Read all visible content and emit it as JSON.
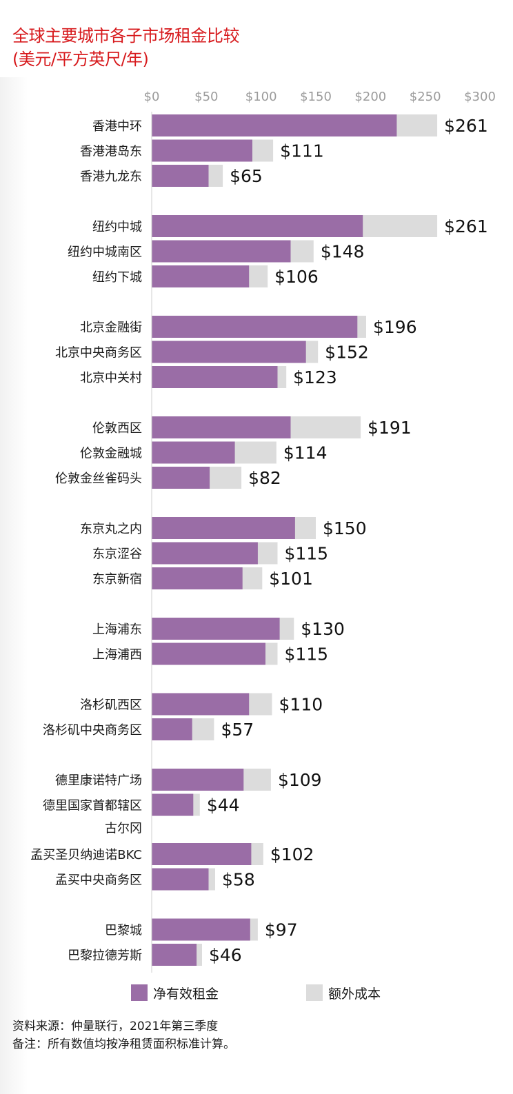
{
  "header": {
    "title": "全球主要城市各子市场租金比较",
    "subtitle": "(美元/平方英尺/年)"
  },
  "legend": {
    "net_label": "净有效租金",
    "extra_label": "额外成本"
  },
  "footer": {
    "source": "资料来源：仲量联行，2021年第三季度",
    "note": "备注：所有数值均按净租赁面积标准计算。"
  },
  "colors": {
    "net": "#9a6da6",
    "extra": "#dcdcdc",
    "title": "#d7191c",
    "tick": "#9b9b9b"
  },
  "chart_data": {
    "type": "bar",
    "orientation": "horizontal",
    "stacked": true,
    "xlim": [
      0,
      300
    ],
    "ticks": [
      0,
      50,
      100,
      150,
      200,
      250,
      300
    ],
    "tick_labels": [
      "$0",
      "$50",
      "$100",
      "$150",
      "$200",
      "$250",
      "$300"
    ],
    "groups": [
      {
        "items": [
          {
            "label": "香港中环",
            "net": 224,
            "extra": 37,
            "total_label": "$261"
          },
          {
            "label": "香港港岛东",
            "net": 92,
            "extra": 19,
            "total_label": "$111"
          },
          {
            "label": "香港九龙东",
            "net": 52,
            "extra": 13,
            "total_label": "$65"
          }
        ]
      },
      {
        "items": [
          {
            "label": "纽约中城",
            "net": 193,
            "extra": 68,
            "total_label": "$261"
          },
          {
            "label": "纽约中城南区",
            "net": 127,
            "extra": 21,
            "total_label": "$148"
          },
          {
            "label": "纽约下城",
            "net": 89,
            "extra": 17,
            "total_label": "$106"
          }
        ]
      },
      {
        "items": [
          {
            "label": "北京金融街",
            "net": 188,
            "extra": 8,
            "total_label": "$196"
          },
          {
            "label": "北京中央商务区",
            "net": 141,
            "extra": 11,
            "total_label": "$152"
          },
          {
            "label": "北京中关村",
            "net": 115,
            "extra": 8,
            "total_label": "$123"
          }
        ]
      },
      {
        "items": [
          {
            "label": "伦敦西区",
            "net": 127,
            "extra": 64,
            "total_label": "$191"
          },
          {
            "label": "伦敦金融城",
            "net": 76,
            "extra": 38,
            "total_label": "$114"
          },
          {
            "label": "伦敦金丝雀码头",
            "net": 53,
            "extra": 29,
            "total_label": "$82"
          }
        ]
      },
      {
        "items": [
          {
            "label": "东京丸之内",
            "net": 131,
            "extra": 19,
            "total_label": "$150"
          },
          {
            "label": "东京涩谷",
            "net": 97,
            "extra": 18,
            "total_label": "$115"
          },
          {
            "label": "东京新宿",
            "net": 83,
            "extra": 18,
            "total_label": "$101"
          }
        ]
      },
      {
        "items": [
          {
            "label": "上海浦东",
            "net": 117,
            "extra": 13,
            "total_label": "$130"
          },
          {
            "label": "上海浦西",
            "net": 104,
            "extra": 11,
            "total_label": "$115"
          }
        ]
      },
      {
        "items": [
          {
            "label": "洛杉矶西区",
            "net": 89,
            "extra": 21,
            "total_label": "$110"
          },
          {
            "label": "洛杉矶中央商务区",
            "net": 37,
            "extra": 20,
            "total_label": "$57"
          }
        ]
      },
      {
        "items": [
          {
            "label": "德里康诺特广场",
            "net": 84,
            "extra": 25,
            "total_label": "$109"
          },
          {
            "label": "德里国家首都辖区",
            "label2": "古尔冈",
            "net": 38,
            "extra": 6,
            "total_label": "$44"
          },
          {
            "label": "孟买圣贝纳迪诺BKC",
            "net": 91,
            "extra": 11,
            "total_label": "$102"
          },
          {
            "label": "孟买中央商务区",
            "net": 52,
            "extra": 6,
            "total_label": "$58"
          }
        ]
      },
      {
        "items": [
          {
            "label": "巴黎城",
            "net": 90,
            "extra": 7,
            "total_label": "$97"
          },
          {
            "label": "巴黎拉德芳斯",
            "net": 41,
            "extra": 5,
            "total_label": "$46"
          }
        ]
      }
    ]
  }
}
